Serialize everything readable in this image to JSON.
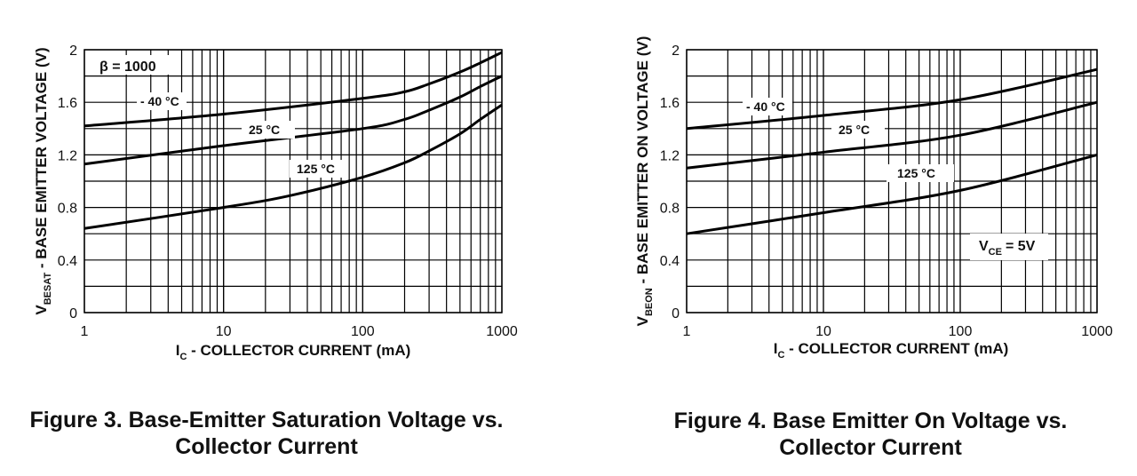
{
  "chart_data": [
    {
      "type": "line",
      "caption_line1": "Figure 3. Base-Emitter Saturation Voltage vs.",
      "caption_line2": "Collector Current",
      "xscale": "log",
      "xlim": [
        1,
        1000
      ],
      "ylim": [
        0,
        2
      ],
      "x_ticks": [
        "1",
        "10",
        "100",
        "1000"
      ],
      "y_ticks": [
        "0",
        "0.4",
        "0.8",
        "1.2",
        "1.6",
        "2"
      ],
      "xlabel_pre": "I",
      "xlabel_sub": "C",
      "xlabel_post": " - COLLECTOR CURRENT  (mA)",
      "ylabel_pre": "V",
      "ylabel_sub": "BESAT",
      "ylabel_post": " - BASE EMITTER VOLTAGE (V)",
      "annotation": "β = 1000",
      "series": [
        {
          "name": "- 40 °C",
          "x": [
            1,
            10,
            100,
            200,
            300,
            500,
            700,
            1000
          ],
          "y": [
            1.42,
            1.51,
            1.63,
            1.68,
            1.74,
            1.83,
            1.9,
            1.98
          ]
        },
        {
          "name": "25 °C",
          "x": [
            1,
            10,
            100,
            200,
            300,
            500,
            700,
            1000
          ],
          "y": [
            1.13,
            1.27,
            1.4,
            1.47,
            1.54,
            1.64,
            1.72,
            1.8
          ]
        },
        {
          "name": "125 °C",
          "x": [
            1,
            10,
            30,
            100,
            200,
            300,
            500,
            700,
            1000
          ],
          "y": [
            0.64,
            0.8,
            0.89,
            1.03,
            1.14,
            1.23,
            1.36,
            1.47,
            1.58
          ]
        }
      ]
    },
    {
      "type": "line",
      "caption_line1": "Figure 4. Base Emitter On Voltage vs.",
      "caption_line2": "Collector Current",
      "xscale": "log",
      "xlim": [
        1,
        1000
      ],
      "ylim": [
        0,
        2
      ],
      "x_ticks": [
        "1",
        "10",
        "100",
        "1000"
      ],
      "y_ticks": [
        "0",
        "0.4",
        "0.8",
        "1.2",
        "1.6",
        "2"
      ],
      "xlabel_pre": "I",
      "xlabel_sub": "C",
      "xlabel_post": " - COLLECTOR CURRENT  (mA)",
      "ylabel_pre": "V",
      "ylabel_sub": "BEON",
      "ylabel_post": " - BASE EMITTER ON VOLTAGE (V)",
      "annotation_pre": "V",
      "annotation_sub": "CE",
      "annotation_post": "= 5V",
      "series": [
        {
          "name": "- 40 °C",
          "x": [
            1,
            10,
            100,
            1000
          ],
          "y": [
            1.4,
            1.5,
            1.62,
            1.85
          ]
        },
        {
          "name": "25 °C",
          "x": [
            1,
            10,
            100,
            1000
          ],
          "y": [
            1.1,
            1.22,
            1.35,
            1.6
          ]
        },
        {
          "name": "125 °C",
          "x": [
            1,
            10,
            100,
            1000
          ],
          "y": [
            0.6,
            0.76,
            0.93,
            1.2
          ]
        }
      ]
    }
  ]
}
